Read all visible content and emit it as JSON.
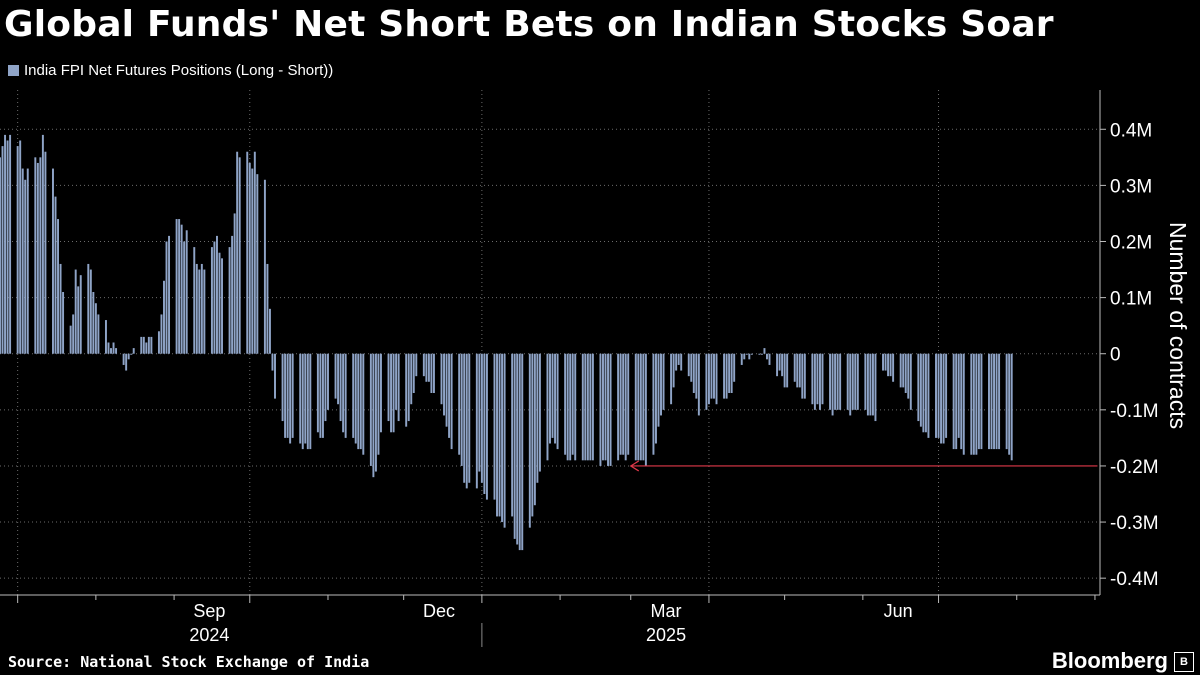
{
  "title": "Global Funds' Net Short Bets on Indian Stocks Soar",
  "source": "Source: National Stock Exchange of India",
  "brand": "Bloomberg",
  "colors": {
    "bar": "#8fa4c7",
    "arrow": "#e0394a",
    "background": "#000000",
    "grid": "#6b6b6b"
  },
  "chart_data": {
    "type": "bar",
    "legend": "India FPI Net Futures Positions (Long - Short))",
    "ylabel": "Number of contracts",
    "ylim": [
      -0.43,
      0.47
    ],
    "yticks": [
      0.4,
      0.3,
      0.2,
      0.1,
      0,
      -0.1,
      -0.2,
      -0.3,
      -0.4
    ],
    "ytick_labels": [
      "0.4M",
      "0.3M",
      "0.2M",
      "0.1M",
      "0",
      "-0.1M",
      "-0.2M",
      "-0.3M",
      "-0.4M"
    ],
    "xlim": [
      "2024-06-24",
      "2025-09-03"
    ],
    "month_labels": [
      {
        "date": "2024-09-15",
        "label": "Sep"
      },
      {
        "date": "2024-12-15",
        "label": "Dec"
      },
      {
        "date": "2025-03-15",
        "label": "Mar"
      },
      {
        "date": "2025-06-15",
        "label": "Jun"
      }
    ],
    "year_labels": [
      {
        "date": "2024-09-15",
        "label": "2024"
      },
      {
        "date": "2025-03-15",
        "label": "2025"
      }
    ],
    "annotation": {
      "type": "arrow",
      "y": -0.2,
      "from_date": "2025-09-02",
      "to_date": "2025-03-01"
    },
    "start_date": "2024-06-24",
    "end_date": "2025-09-02",
    "unit": "million contracts",
    "values": [
      0.35,
      0.37,
      0.39,
      0.38,
      0.39,
      0.37,
      0.38,
      0.33,
      0.31,
      0.33,
      0.35,
      0.34,
      0.35,
      0.39,
      0.36,
      0.33,
      0.28,
      0.24,
      0.16,
      0.11,
      0.05,
      0.07,
      0.15,
      0.12,
      0.14,
      0.16,
      0.15,
      0.11,
      0.09,
      0.07,
      0.06,
      0.02,
      0.01,
      0.02,
      0.01,
      -0.02,
      -0.03,
      -0.01,
      -0.0,
      0.01,
      0.03,
      0.03,
      0.02,
      0.03,
      0.03,
      0.04,
      0.07,
      0.13,
      0.2,
      0.21,
      0.24,
      0.24,
      0.23,
      0.2,
      0.22,
      0.19,
      0.16,
      0.15,
      0.16,
      0.15,
      0.19,
      0.2,
      0.21,
      0.18,
      0.17,
      0.19,
      0.21,
      0.25,
      0.36,
      0.35,
      0.36,
      0.34,
      0.33,
      0.36,
      0.32,
      0.31,
      0.16,
      0.08,
      -0.03,
      -0.08,
      -0.12,
      -0.15,
      -0.15,
      -0.16,
      -0.15,
      -0.16,
      -0.17,
      -0.16,
      -0.17,
      -0.17,
      -0.14,
      -0.15,
      -0.15,
      -0.12,
      -0.1,
      -0.08,
      -0.09,
      -0.12,
      -0.14,
      -0.15,
      -0.15,
      -0.16,
      -0.17,
      -0.17,
      -0.18,
      -0.2,
      -0.22,
      -0.21,
      -0.18,
      -0.14,
      -0.12,
      -0.14,
      -0.14,
      -0.1,
      -0.12,
      -0.13,
      -0.12,
      -0.09,
      -0.07,
      -0.04,
      -0.04,
      -0.05,
      -0.05,
      -0.07,
      -0.07,
      -0.09,
      -0.11,
      -0.13,
      -0.15,
      -0.17,
      -0.18,
      -0.2,
      -0.23,
      -0.24,
      -0.23,
      -0.24,
      -0.21,
      -0.23,
      -0.25,
      -0.26,
      -0.26,
      -0.29,
      -0.29,
      -0.3,
      -0.31,
      -0.29,
      -0.33,
      -0.34,
      -0.35,
      -0.35,
      -0.31,
      -0.29,
      -0.27,
      -0.23,
      -0.21,
      -0.19,
      -0.16,
      -0.15,
      -0.16,
      -0.17,
      -0.18,
      -0.19,
      -0.19,
      -0.18,
      -0.19,
      -0.19,
      -0.19,
      -0.19,
      -0.19,
      -0.19,
      -0.2,
      -0.19,
      -0.19,
      -0.2,
      -0.2,
      -0.19,
      -0.18,
      -0.18,
      -0.19,
      -0.18,
      -0.19,
      -0.19,
      -0.19,
      -0.19,
      -0.2,
      -0.18,
      -0.16,
      -0.13,
      -0.11,
      -0.1,
      -0.09,
      -0.06,
      -0.03,
      -0.02,
      -0.03,
      -0.04,
      -0.05,
      -0.07,
      -0.08,
      -0.11,
      -0.1,
      -0.09,
      -0.08,
      -0.08,
      -0.09,
      -0.08,
      -0.08,
      -0.07,
      -0.07,
      -0.05,
      -0.02,
      -0.01,
      -0.0,
      -0.01,
      0.0,
      0.0,
      0.0,
      0.01,
      -0.01,
      -0.02,
      -0.04,
      -0.03,
      -0.04,
      -0.06,
      -0.06,
      -0.05,
      -0.06,
      -0.06,
      -0.08,
      -0.08,
      -0.09,
      -0.1,
      -0.09,
      -0.1,
      -0.09,
      -0.1,
      -0.11,
      -0.1,
      -0.1,
      -0.1,
      -0.1,
      -0.11,
      -0.1,
      -0.1,
      -0.1,
      -0.1,
      -0.11,
      -0.11,
      -0.11,
      -0.12,
      -0.03,
      -0.03,
      -0.04,
      -0.04,
      -0.05,
      -0.06,
      -0.06,
      -0.07,
      -0.08,
      -0.1,
      -0.12,
      -0.13,
      -0.14,
      -0.14,
      -0.15,
      -0.15,
      -0.15,
      -0.16,
      -0.16,
      -0.15,
      -0.17,
      -0.17,
      -0.15,
      -0.17,
      -0.18,
      -0.18,
      -0.18,
      -0.18,
      -0.17,
      -0.17,
      -0.17,
      -0.17,
      -0.17,
      -0.17,
      -0.17,
      -0.17,
      -0.18,
      -0.19
    ]
  }
}
